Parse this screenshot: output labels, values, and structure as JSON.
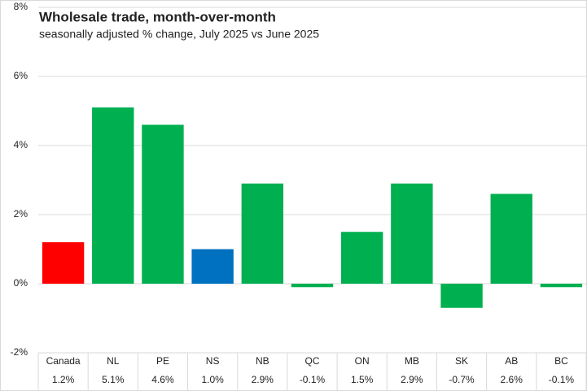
{
  "chart_data": {
    "type": "bar",
    "title": "Wholesale trade, month-over-month",
    "subtitle": "seasonally adjusted % change, July 2025 vs June 2025",
    "categories": [
      "Canada",
      "NL",
      "PE",
      "NS",
      "NB",
      "QC",
      "ON",
      "MB",
      "SK",
      "AB",
      "BC"
    ],
    "values": [
      1.2,
      5.1,
      4.6,
      1.0,
      2.9,
      -0.1,
      1.5,
      2.9,
      -0.7,
      2.6,
      -0.1
    ],
    "value_labels": [
      "1.2%",
      "5.1%",
      "4.6%",
      "1.0%",
      "2.9%",
      "-0.1%",
      "1.5%",
      "2.9%",
      "-0.7%",
      "2.6%",
      "-0.1%"
    ],
    "colors": [
      "#ff0000",
      "#00b050",
      "#00b050",
      "#0070c0",
      "#00b050",
      "#00b050",
      "#00b050",
      "#00b050",
      "#00b050",
      "#00b050",
      "#00b050"
    ],
    "ylim": [
      -2,
      8
    ],
    "yticks": [
      {
        "value": -2,
        "label": "-2%"
      },
      {
        "value": 0,
        "label": "0%"
      },
      {
        "value": 2,
        "label": "2%"
      },
      {
        "value": 4,
        "label": "4%"
      },
      {
        "value": 6,
        "label": "6%"
      },
      {
        "value": 8,
        "label": "8%"
      }
    ],
    "grid": true
  }
}
